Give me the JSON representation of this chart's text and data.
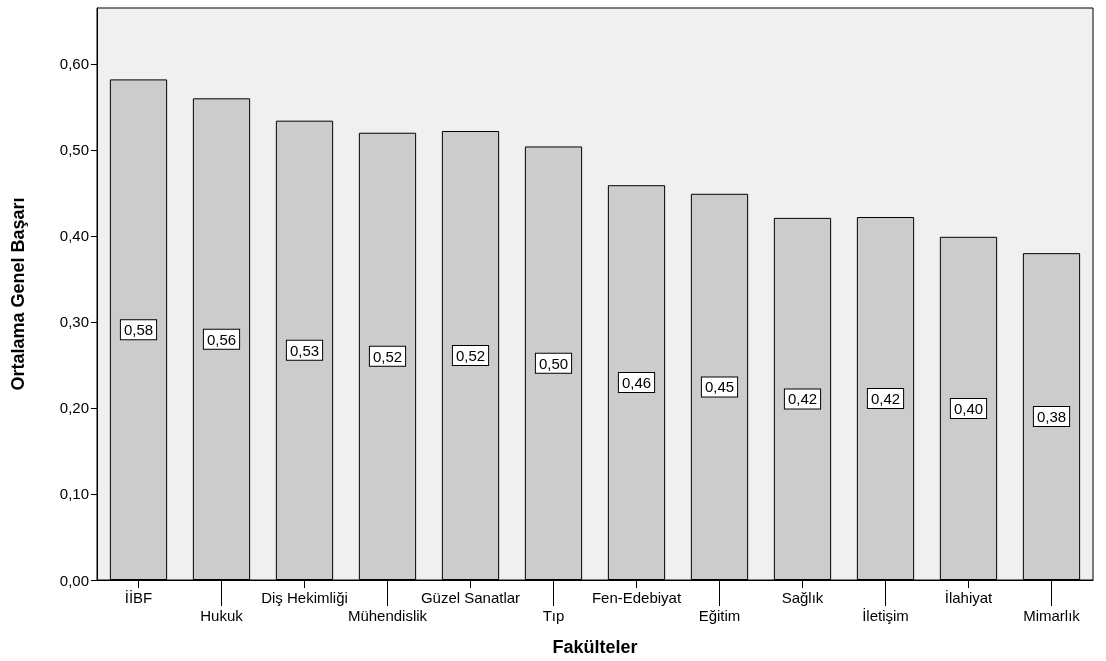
{
  "chart_data": {
    "type": "bar",
    "xlabel": "Fakülteler",
    "ylabel": "Ortalama Genel Başarı",
    "categories": [
      "İİBF",
      "Hukuk",
      "Diş Hekimliği",
      "Mühendislik",
      "Güzel Sanatlar",
      "Tıp",
      "Fen-Edebiyat",
      "Eğitim",
      "Sağlık",
      "İletişim",
      "İlahiyat",
      "Mimarlık"
    ],
    "values": [
      0.582,
      0.56,
      0.534,
      0.52,
      0.522,
      0.504,
      0.459,
      0.449,
      0.421,
      0.422,
      0.399,
      0.38
    ],
    "value_labels": [
      "0,58",
      "0,56",
      "0,53",
      "0,52",
      "0,52",
      "0,50",
      "0,46",
      "0,45",
      "0,42",
      "0,42",
      "0,40",
      "0,38"
    ],
    "color": "#cccccc",
    "ylim": [
      0,
      0.665
    ],
    "yticks": [
      {
        "value": 0,
        "label": "0,00"
      },
      {
        "value": 0.1,
        "label": "0,10"
      },
      {
        "value": 0.2,
        "label": "0,20"
      },
      {
        "value": 0.3,
        "label": "0,30"
      },
      {
        "value": 0.4,
        "label": "0,40"
      },
      {
        "value": 0.5,
        "label": "0,50"
      },
      {
        "value": 0.6,
        "label": "0,60"
      }
    ],
    "grid": false
  }
}
